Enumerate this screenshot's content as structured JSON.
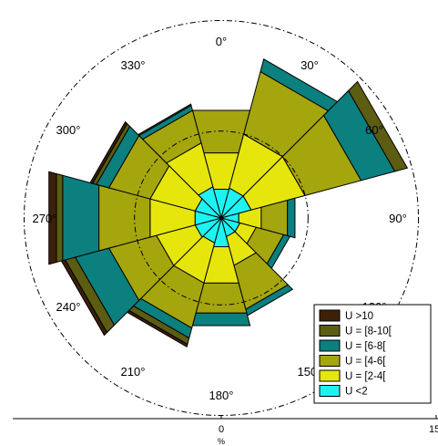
{
  "chart_data": {
    "type": "wind_rose",
    "bins": [
      {
        "label": "U >10",
        "color": "#3d2008"
      },
      {
        "label": "U = [8-10[",
        "color": "#5c5c12"
      },
      {
        "label": "U = [6-8[",
        "color": "#0c7f7f"
      },
      {
        "label": "U = [4-6[",
        "color": "#a5a50d"
      },
      {
        "label": "U = [2-4[",
        "color": "#e6e60c"
      },
      {
        "label": "U <2",
        "color": "#1ef3f3"
      }
    ],
    "sector_centers_deg": [
      0,
      30,
      60,
      90,
      120,
      150,
      180,
      210,
      240,
      270,
      300,
      330
    ],
    "cumulative_percent": [
      [
        2.3,
        5.2,
        8.6,
        8.6,
        8.6,
        8.6
      ],
      [
        2.4,
        6.7,
        11.7,
        12.7,
        12.7,
        12.7
      ],
      [
        2.4,
        6.7,
        11.2,
        13.9,
        14.9,
        14.9
      ],
      [
        1.4,
        3.2,
        5.3,
        5.9,
        5.9,
        5.9
      ],
      [
        1.5,
        2.8,
        5.0,
        5.5,
        5.5,
        5.5
      ],
      [
        1.5,
        3.8,
        7.3,
        7.8,
        7.8,
        7.8
      ],
      [
        2.3,
        5.2,
        7.6,
        8.6,
        8.6,
        8.6
      ],
      [
        2.0,
        5.2,
        8.8,
        9.6,
        10.1,
        10.3
      ],
      [
        2.1,
        5.2,
        9.0,
        11.7,
        12.5,
        12.8
      ],
      [
        2.1,
        5.7,
        9.8,
        12.7,
        13.2,
        13.8
      ],
      [
        2.1,
        5.7,
        9.0,
        10.0,
        10.3,
        10.5
      ],
      [
        2.5,
        6.0,
        8.6,
        9.0,
        9.1,
        9.1
      ]
    ],
    "direction_labels": [
      "0°",
      "30°",
      "60°",
      "90°",
      "120°",
      "150°",
      "180°",
      "210°",
      "240°",
      "270°",
      "300°",
      "330°"
    ],
    "rings": [
      5,
      10
    ],
    "axis": {
      "x_ticks": [
        "0",
        "15"
      ],
      "xlabel": "%"
    },
    "legend_position": "bottom-right"
  }
}
